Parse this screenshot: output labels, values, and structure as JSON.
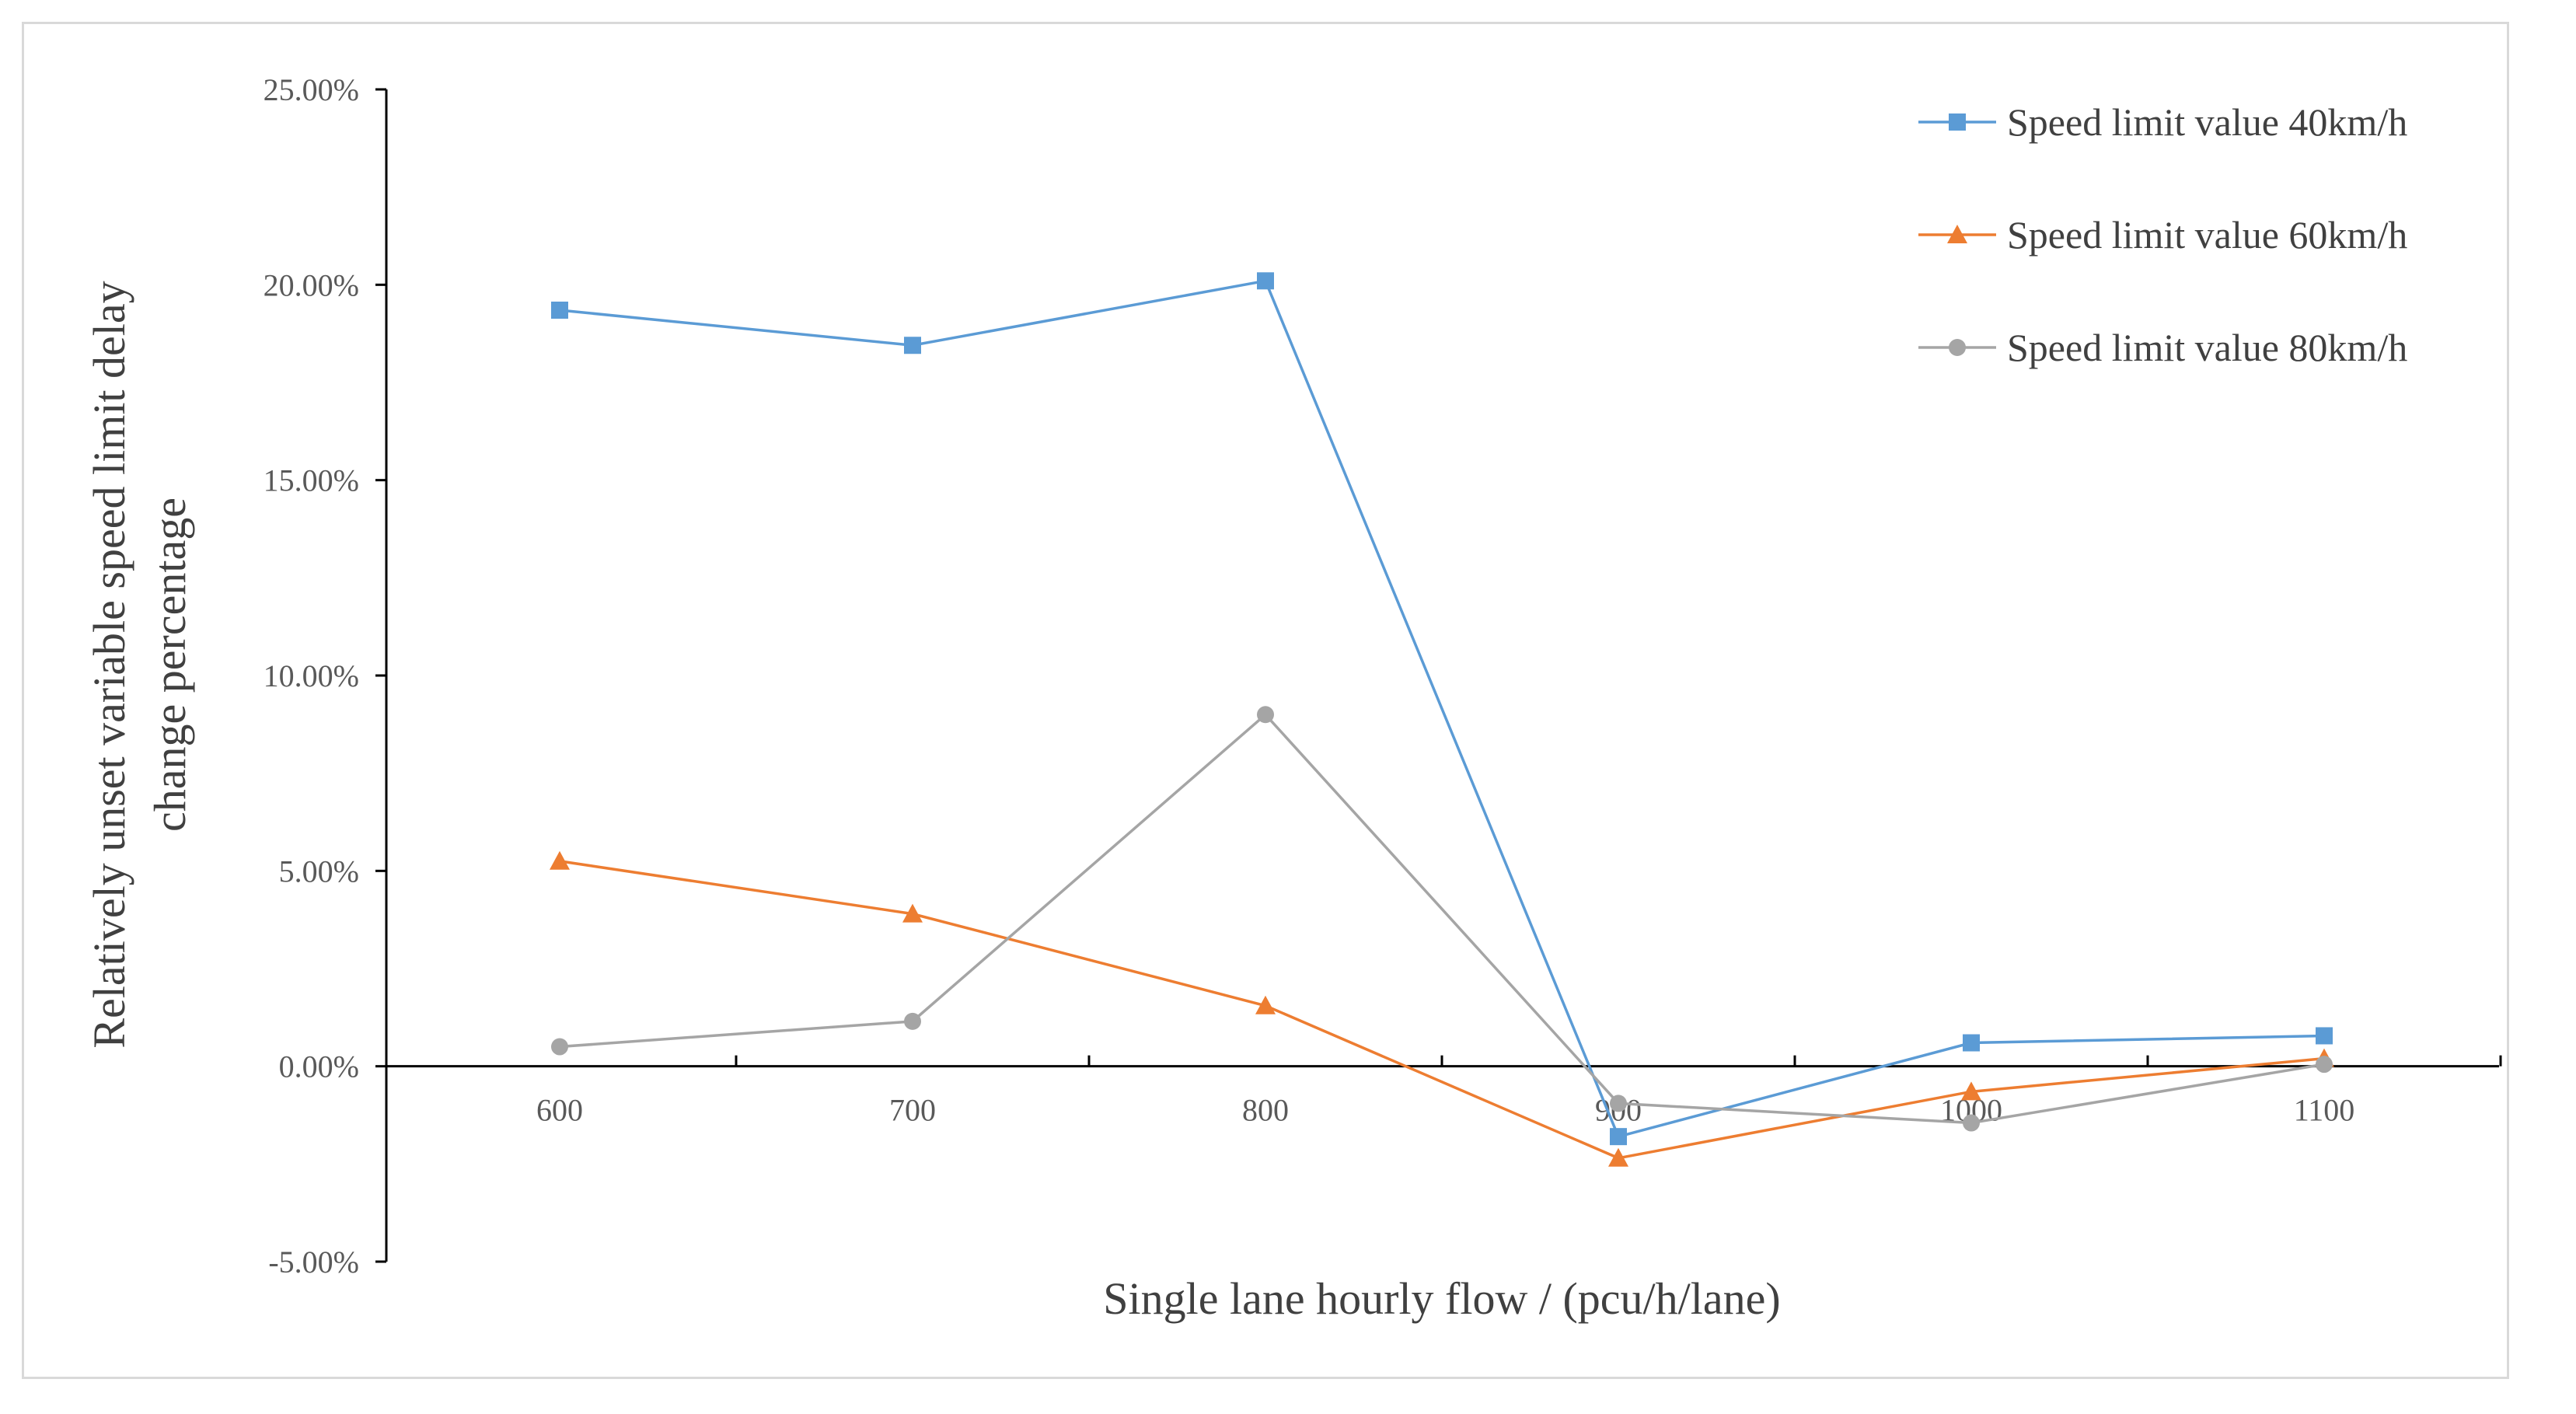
{
  "chart_data": {
    "type": "line",
    "title": "",
    "xlabel": "Single lane hourly flow / (pcu/h/lane)",
    "ylabel_lines": [
      "Relatively unset variable speed limit delay",
      "change percentage"
    ],
    "categories": [
      "600",
      "700",
      "800",
      "900",
      "1000",
      "1100"
    ],
    "y_ticks": [
      "25.00%",
      "20.00%",
      "15.00%",
      "10.00%",
      "5.00%",
      "0.00%",
      "-5.00%"
    ],
    "ylim": [
      -5,
      25
    ],
    "y_unit": "%",
    "grid": false,
    "legend_position": "top-right",
    "series": [
      {
        "name": "Speed limit value 40km/h",
        "marker": "square",
        "color": "#5B9BD5",
        "values": [
          19.35,
          18.45,
          20.1,
          -1.8,
          0.6,
          0.78
        ]
      },
      {
        "name": "Speed limit value 60km/h",
        "marker": "triangle",
        "color": "#ED7D31",
        "values": [
          5.25,
          3.9,
          1.55,
          -2.35,
          -0.65,
          0.2
        ]
      },
      {
        "name": "Speed limit value 80km/h",
        "marker": "circle",
        "color": "#A5A5A5",
        "values": [
          0.5,
          1.15,
          9.0,
          -0.95,
          -1.45,
          0.05
        ]
      }
    ]
  }
}
